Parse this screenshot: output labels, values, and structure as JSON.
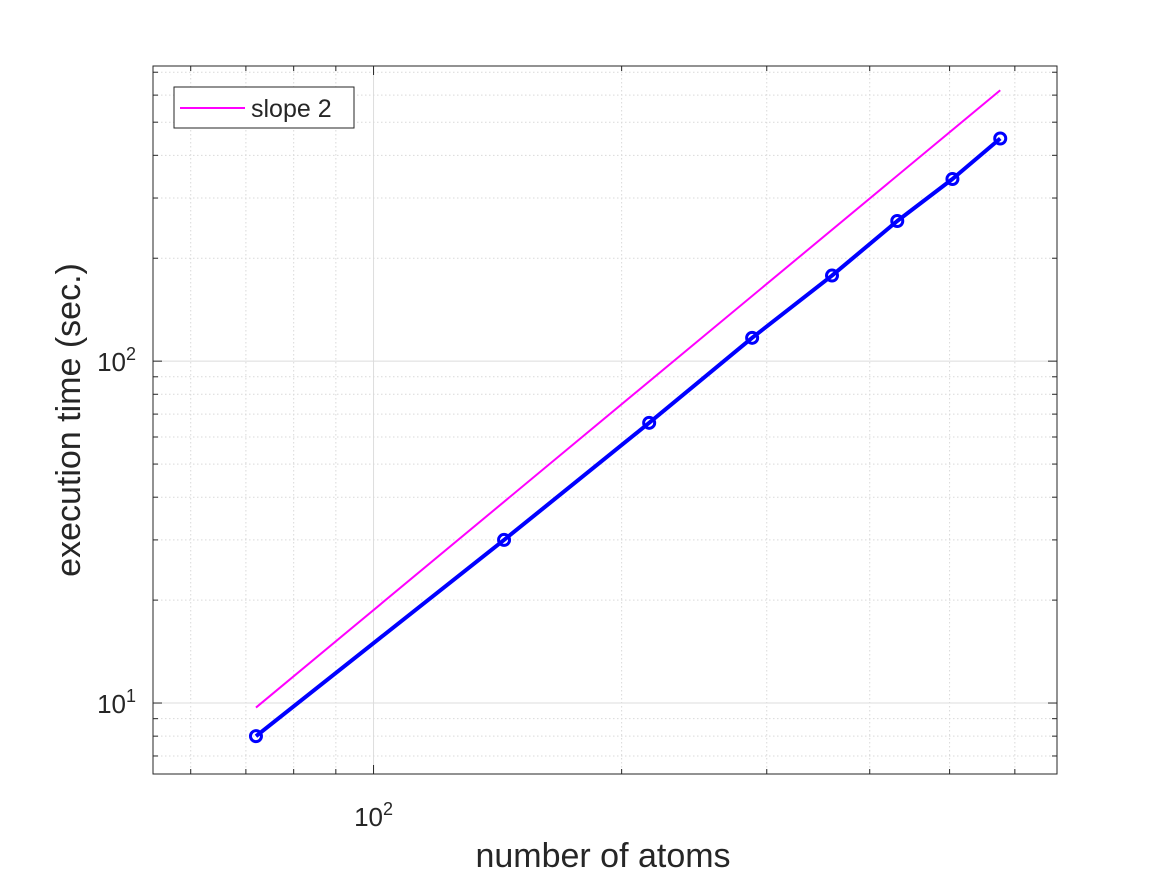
{
  "chart_data": {
    "type": "line",
    "title": "",
    "xlabel": "number of atoms",
    "ylabel": "execution time (sec.)",
    "xscale": "log",
    "yscale": "log",
    "xlim": [
      54,
      675
    ],
    "ylim": [
      6.2,
      730
    ],
    "grid": true,
    "xtick_labels": [
      {
        "base": "10",
        "exp": "2",
        "value": 100
      }
    ],
    "ytick_labels": [
      {
        "base": "10",
        "exp": "1",
        "value": 10
      },
      {
        "base": "10",
        "exp": "2",
        "value": 100
      }
    ],
    "legend": {
      "position": "top-left",
      "entries": [
        "slope 2"
      ]
    },
    "series": [
      {
        "name": "",
        "color": "#0000ff",
        "marker": "o",
        "x": [
          72,
          144,
          216,
          288,
          360,
          432,
          504,
          576
        ],
        "y": [
          8,
          30,
          66,
          117,
          178,
          257,
          341,
          448
        ]
      },
      {
        "name": "slope 2",
        "color": "#ff00ff",
        "x": [
          72,
          576
        ],
        "y": [
          9.7,
          620
        ]
      }
    ]
  }
}
